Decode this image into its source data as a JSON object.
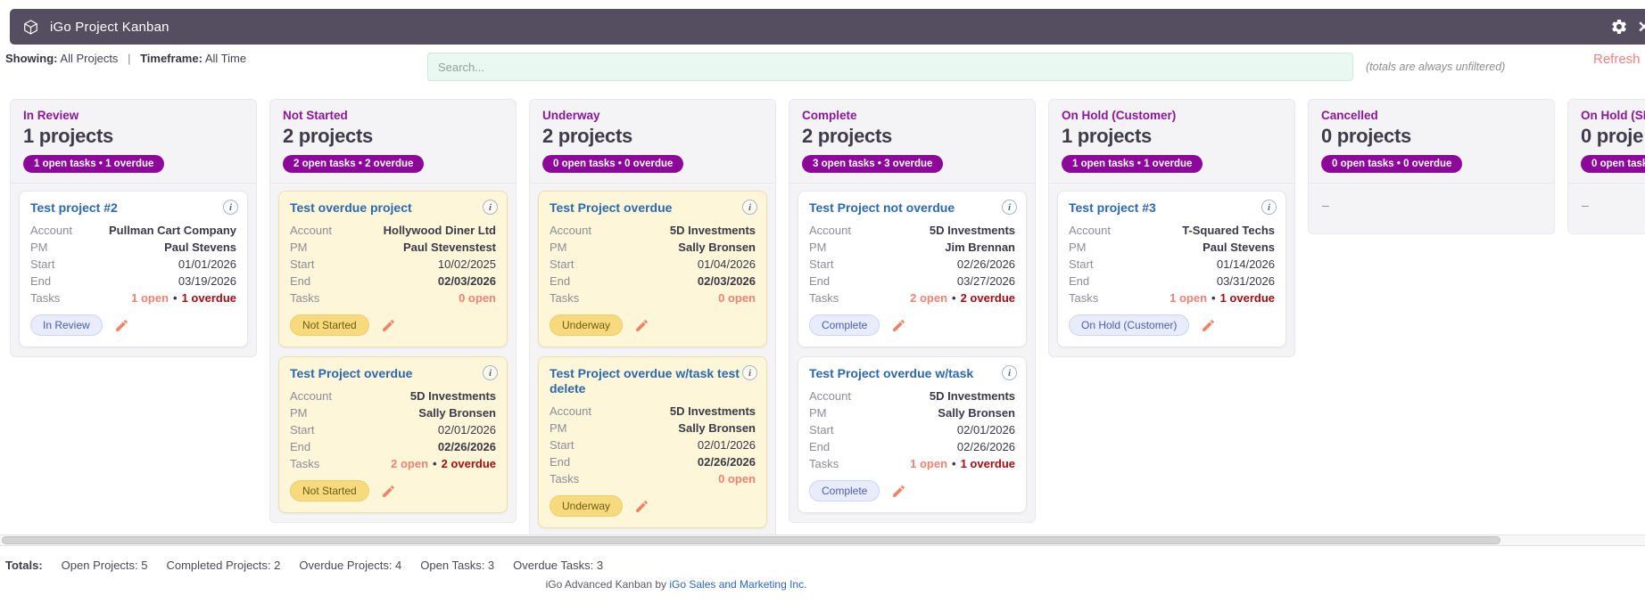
{
  "header": {
    "title": "iGo Project Kanban",
    "close_glyph": "✕"
  },
  "toolbar": {
    "showing_label": "Showing:",
    "showing_value": "All Projects",
    "sep": "|",
    "timeframe_label": "Timeframe:",
    "timeframe_value": "All Time",
    "search_placeholder": "Search...",
    "note": "(totals are always unfiltered)",
    "refresh_label": "Refresh"
  },
  "card_labels": {
    "account": "Account",
    "pm": "PM",
    "start": "Start",
    "end": "End",
    "tasks": "Tasks",
    "bullet": "•",
    "info_glyph": "i"
  },
  "columns": [
    {
      "title": "In Review",
      "count": "1 projects",
      "badge": "1 open tasks • 1 overdue",
      "cards": [
        {
          "title": "Test project #2",
          "style": "white",
          "account": "Pullman Cart Company",
          "pm": "Paul Stevens",
          "start": "01/01/2026",
          "end": "03/19/2026",
          "end_overdue": false,
          "tasks_open": "1 open",
          "tasks_overdue": "1 overdue",
          "chip": "In Review",
          "chip_style": "indigo"
        }
      ]
    },
    {
      "title": "Not Started",
      "count": "2 projects",
      "badge": "2 open tasks • 2 overdue",
      "cards": [
        {
          "title": "Test overdue project",
          "style": "yellow",
          "account": "Hollywood Diner Ltd",
          "pm": "Paul Stevenstest",
          "start": "10/02/2025",
          "end": "02/03/2026",
          "end_overdue": true,
          "tasks_open": "0 open",
          "tasks_overdue": null,
          "chip": "Not Started",
          "chip_style": "yellow"
        },
        {
          "title": "Test Project overdue",
          "style": "yellow",
          "account": "5D Investments",
          "pm": "Sally Bronsen",
          "start": "02/01/2026",
          "end": "02/26/2026",
          "end_overdue": true,
          "tasks_open": "2 open",
          "tasks_overdue": "2 overdue",
          "chip": "Not Started",
          "chip_style": "yellow"
        }
      ]
    },
    {
      "title": "Underway",
      "count": "2 projects",
      "badge": "0 open tasks • 0 overdue",
      "cards": [
        {
          "title": "Test Project overdue",
          "style": "yellow",
          "account": "5D Investments",
          "pm": "Sally Bronsen",
          "start": "01/04/2026",
          "end": "02/03/2026",
          "end_overdue": true,
          "tasks_open": "0 open",
          "tasks_overdue": null,
          "chip": "Underway",
          "chip_style": "yellow"
        },
        {
          "title": "Test Project overdue w/task test delete",
          "style": "yellow",
          "account": "5D Investments",
          "pm": "Sally Bronsen",
          "start": "02/01/2026",
          "end": "02/26/2026",
          "end_overdue": true,
          "tasks_open": "0 open",
          "tasks_overdue": null,
          "chip": "Underway",
          "chip_style": "yellow"
        }
      ]
    },
    {
      "title": "Complete",
      "count": "2 projects",
      "badge": "3 open tasks • 3 overdue",
      "cards": [
        {
          "title": "Test Project not overdue",
          "style": "white",
          "account": "5D Investments",
          "pm": "Jim Brennan",
          "start": "02/26/2026",
          "end": "03/27/2026",
          "end_overdue": false,
          "tasks_open": "2 open",
          "tasks_overdue": "2 overdue",
          "chip": "Complete",
          "chip_style": "indigo"
        },
        {
          "title": "Test Project overdue w/task",
          "style": "white",
          "account": "5D Investments",
          "pm": "Sally Bronsen",
          "start": "02/01/2026",
          "end": "02/26/2026",
          "end_overdue": false,
          "tasks_open": "1 open",
          "tasks_overdue": "1 overdue",
          "chip": "Complete",
          "chip_style": "indigo"
        }
      ]
    },
    {
      "title": "On Hold (Customer)",
      "count": "1 projects",
      "badge": "1 open tasks • 1 overdue",
      "cards": [
        {
          "title": "Test project #3",
          "style": "white",
          "account": "T-Squared Techs",
          "pm": "Paul Stevens",
          "start": "01/14/2026",
          "end": "03/31/2026",
          "end_overdue": false,
          "tasks_open": "1 open",
          "tasks_overdue": "1 overdue",
          "chip": "On Hold (Customer)",
          "chip_style": "indigo"
        }
      ]
    },
    {
      "title": "Cancelled",
      "count": "0 projects",
      "badge": "0 open tasks • 0 overdue",
      "empty": "–",
      "cards": []
    },
    {
      "title": "On Hold (SF",
      "count": "0 proje",
      "badge": "0 open task",
      "empty": "–",
      "cards": []
    }
  ],
  "totals": {
    "label": "Totals:",
    "items": [
      "Open Projects: 5",
      "Completed Projects: 2",
      "Overdue Projects: 4",
      "Open Tasks: 3",
      "Overdue Tasks: 3"
    ]
  },
  "footer": {
    "text": "iGo Advanced Kanban by",
    "link_text": "iGo Sales and Marketing Inc."
  },
  "colors": {
    "header_bg": "#554e60",
    "column_title_purple": "#8d169c",
    "badge_purple": "#8d089a",
    "card_title_blue": "#2c68ae",
    "account_salmon": "#f08173",
    "overdue_red": "#c20a12",
    "tasks_overdue_red": "#a30d13",
    "refresh_salmon": "#f47f7f",
    "card_yellow_bg": "#fdf6d9",
    "chip_indigo_text": "#4a5ab8",
    "chip_yellow_bg": "#f7da7d",
    "search_bg": "#e9f8f0",
    "footer_link_blue": "#2b66c9"
  }
}
